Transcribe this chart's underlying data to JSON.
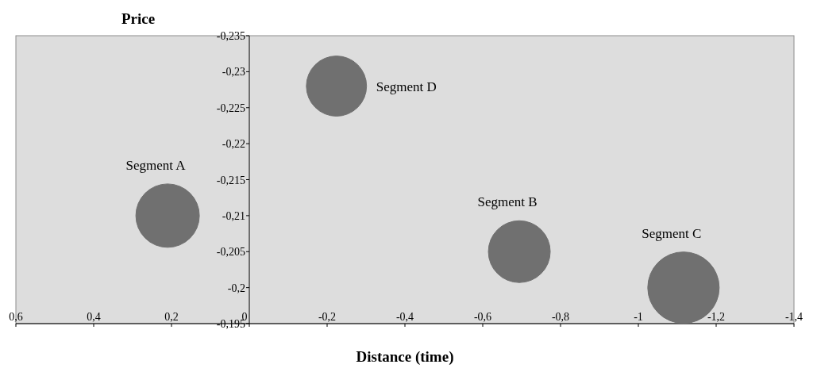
{
  "chart_data": {
    "type": "bubble",
    "xlabel": "Distance (time)",
    "ylabel": "Price",
    "xlim": [
      0.6,
      -1.4
    ],
    "xticks": [
      {
        "value": 0.6,
        "label": "0,6"
      },
      {
        "value": 0.4,
        "label": "0,4"
      },
      {
        "value": 0.2,
        "label": "0,2"
      },
      0,
      {
        "value": -0.2,
        "label": "-0,2"
      },
      {
        "value": -0.4,
        "label": "-0,4"
      },
      {
        "value": -0.6,
        "label": "-0,6"
      },
      {
        "value": -0.8,
        "label": "-0,8"
      },
      -1,
      {
        "value": -1.2,
        "label": "-1,2"
      },
      {
        "value": -1.4,
        "label": "-1,4"
      }
    ],
    "ylim": [
      -0.195,
      -0.235
    ],
    "yticks": [
      {
        "value": -0.235,
        "label": "-0,235"
      },
      {
        "value": -0.23,
        "label": "-0,23"
      },
      {
        "value": -0.225,
        "label": "-0,225"
      },
      {
        "value": -0.22,
        "label": "-0,22"
      },
      {
        "value": -0.215,
        "label": "-0,215"
      },
      {
        "value": -0.21,
        "label": "-0,21"
      },
      {
        "value": -0.205,
        "label": "-0,205"
      },
      {
        "value": -0.2,
        "label": "-0,2"
      },
      {
        "value": -0.195,
        "label": "-0,195"
      }
    ],
    "grid": false,
    "series": [
      {
        "name": "Segment A",
        "color": "#707070",
        "x": [
          0.21
        ],
        "values": [
          -0.21
        ],
        "sizes": [
          0.79
        ]
      },
      {
        "name": "Segment D",
        "color": "#707070",
        "x": [
          -0.224
        ],
        "values": [
          -0.228
        ],
        "sizes": [
          0.71
        ]
      },
      {
        "name": "Segment B",
        "color": "#707070",
        "x": [
          -0.694
        ],
        "values": [
          -0.205
        ],
        "sizes": [
          0.75
        ]
      },
      {
        "name": "Segment C",
        "color": "#707070",
        "x": [
          -1.116
        ],
        "values": [
          -0.2
        ],
        "sizes": [
          1
        ]
      }
    ]
  }
}
